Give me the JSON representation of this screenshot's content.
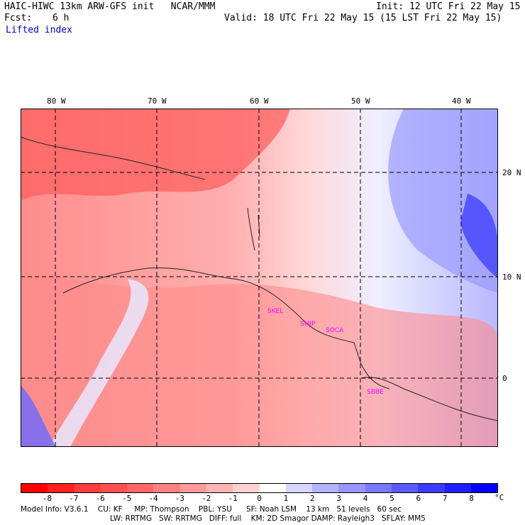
{
  "header": {
    "model_title": "HAIC-HIWC 13km ARW-GFS init   NCAR/MMM",
    "init": "Init: 12 UTC Fri 22 May 15",
    "fcst_label": "Fcst:",
    "fcst_value": "6 h",
    "valid": "Valid: 18 UTC Fri 22 May 15 (15 LST Fri 22 May 15)",
    "field": "Lifted index"
  },
  "axes": {
    "lon_labels": [
      "80 W",
      "70 W",
      "60 W",
      "50 W",
      "40 W"
    ],
    "lat_labels": [
      "20 N",
      "10 N",
      "0"
    ]
  },
  "stations": [
    "SKEL",
    "SMJP",
    "SOCA",
    "SBBE"
  ],
  "colorbar": {
    "unit": "°C",
    "labels": [
      "-8",
      "-7",
      "-6",
      "-5",
      "-4",
      "-3",
      "-2",
      "-1",
      "0",
      "1",
      "2",
      "3",
      "4",
      "5",
      "6",
      "7",
      "8"
    ],
    "colors": [
      "#ff0000",
      "#ff2020",
      "#ff3c3c",
      "#ff5050",
      "#ff6868",
      "#ff8080",
      "#ff9a9a",
      "#ffb4b4",
      "#ffd2d2",
      "#ffffff",
      "#d6d6ff",
      "#b4b4ff",
      "#9696ff",
      "#7878ff",
      "#5a5aff",
      "#3c3cff",
      "#1e1eff",
      "#0000ff"
    ]
  },
  "footer": {
    "line1": "Model Info: V3.6.1    CU: KF     MP: Thompson    PBL: YSU      SF: Noah LSM    13 km   51 levels   60 sec",
    "line2": "LW: RRTMG   SW: RRTMG   DIFF: full    KM: 2D Smagor DAMP: Rayleigh3   SFLAY: MM5"
  },
  "colors": {
    "station": "#ff00ff",
    "title_blue": "#0000c8"
  }
}
